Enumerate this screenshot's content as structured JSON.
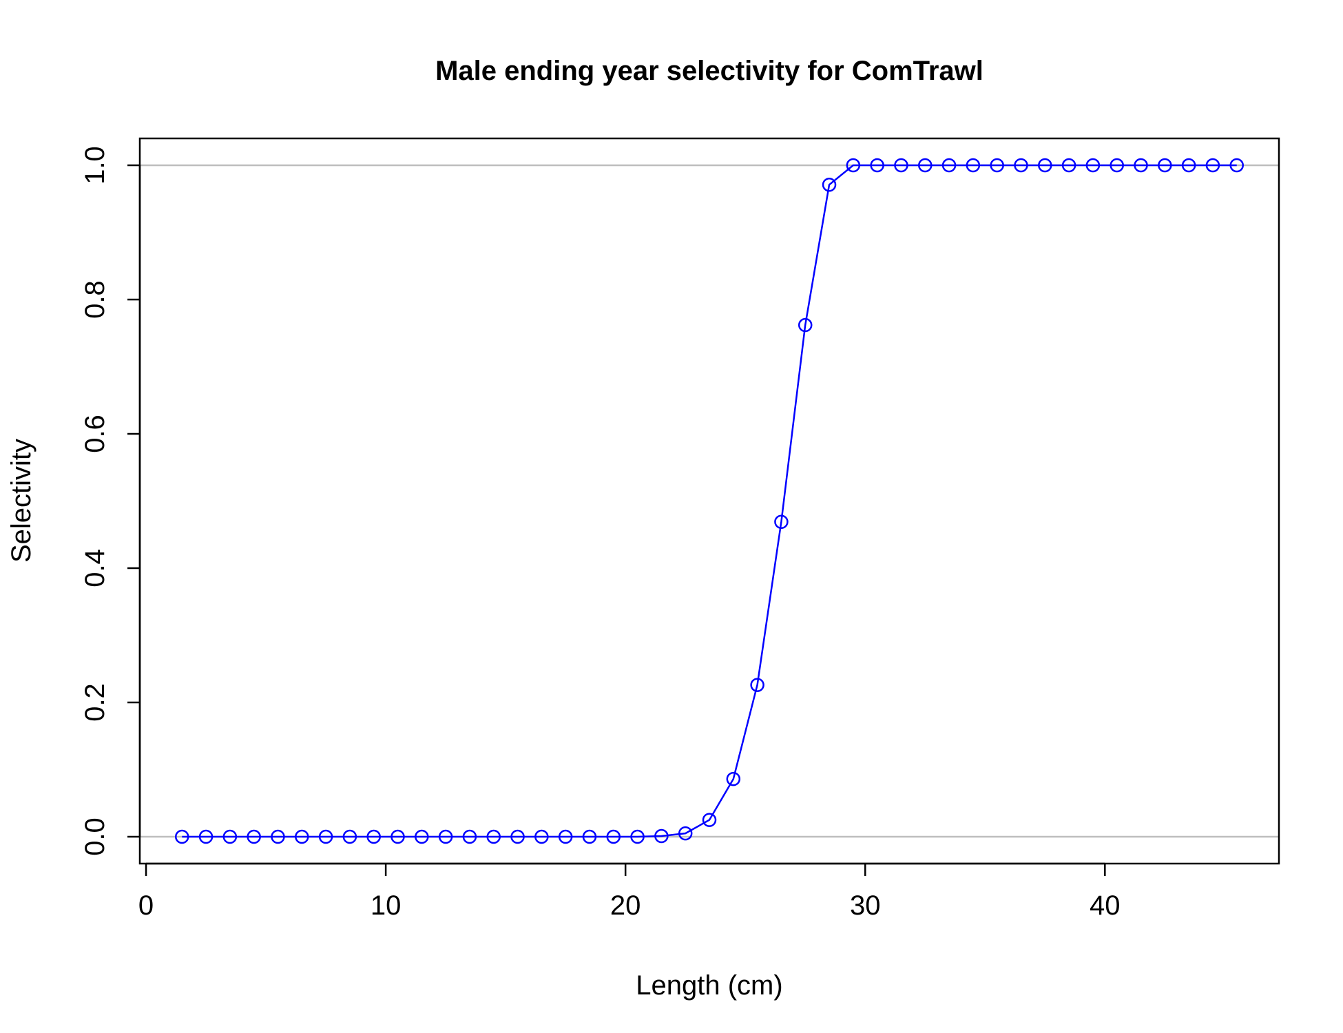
{
  "chart_data": {
    "type": "line",
    "title": "Male ending year selectivity for ComTrawl",
    "xlabel": "Length (cm)",
    "ylabel": "Selectivity",
    "xlim": [
      0,
      47
    ],
    "ylim": [
      0,
      1
    ],
    "x_ticks": [
      0,
      10,
      20,
      30,
      40
    ],
    "y_ticks": [
      0.0,
      0.2,
      0.4,
      0.6,
      0.8,
      1.0
    ],
    "x_tick_labels": [
      "0",
      "10",
      "20",
      "30",
      "40"
    ],
    "y_tick_labels": [
      "0.0",
      "0.2",
      "0.4",
      "0.6",
      "0.8",
      "1.0"
    ],
    "reference_lines": [
      0,
      1
    ],
    "reference_line_color": "#bebebe",
    "grid": false,
    "legend": "none",
    "series": [
      {
        "color": "#0000ff",
        "marker": "open-circle",
        "x": [
          1.5,
          2.5,
          3.5,
          4.5,
          5.5,
          6.5,
          7.5,
          8.5,
          9.5,
          10.5,
          11.5,
          12.5,
          13.5,
          14.5,
          15.5,
          16.5,
          17.5,
          18.5,
          19.5,
          20.5,
          21.5,
          22.5,
          23.5,
          24.5,
          25.5,
          26.5,
          27.5,
          28.5,
          29.5,
          30.5,
          31.5,
          32.5,
          33.5,
          34.5,
          35.5,
          36.5,
          37.5,
          38.5,
          39.5,
          40.5,
          41.5,
          42.5,
          43.5,
          44.5,
          45.5
        ],
        "y": [
          0,
          0,
          0,
          0,
          0,
          0,
          0,
          0,
          0,
          0,
          0,
          0,
          0,
          0,
          0,
          0,
          0,
          0,
          0,
          0,
          0.001,
          0.005,
          0.025,
          0.086,
          0.226,
          0.469,
          0.762,
          0.971,
          1.0,
          1.0,
          1.0,
          1.0,
          1.0,
          1.0,
          1.0,
          1.0,
          1.0,
          1.0,
          1.0,
          1.0,
          1.0,
          1.0,
          1.0,
          1.0,
          1.0
        ]
      }
    ]
  }
}
